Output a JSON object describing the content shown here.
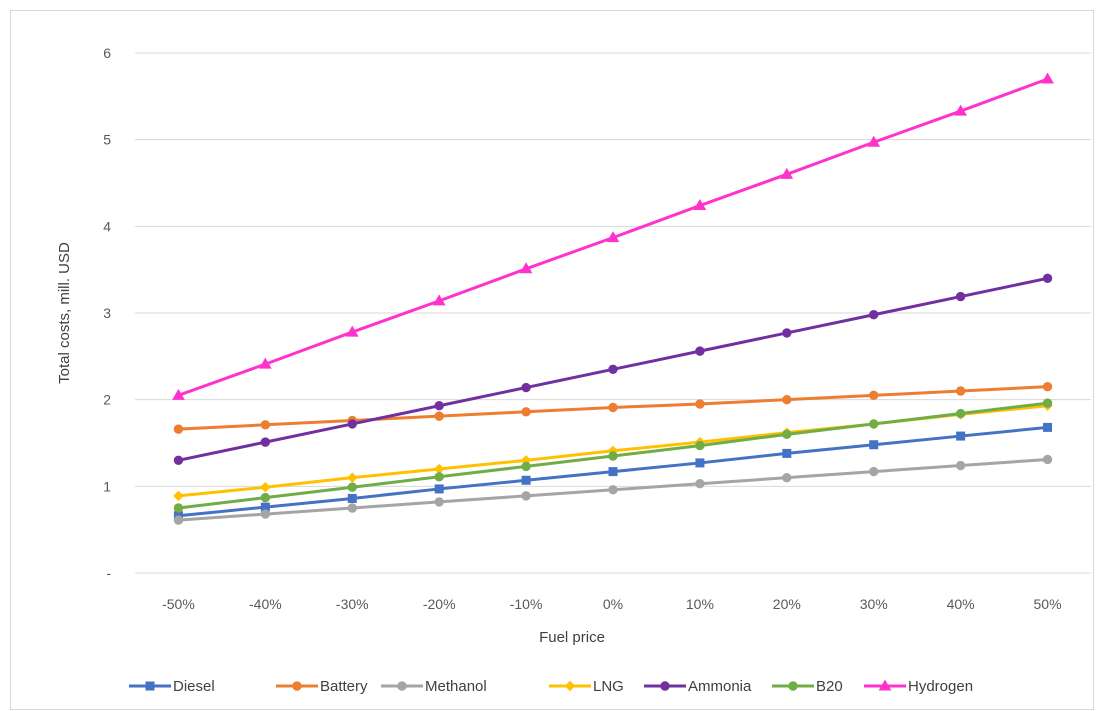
{
  "chart_data": {
    "type": "line",
    "title": "",
    "xlabel": "Fuel price",
    "ylabel": "Total costs, mill. USD",
    "categories": [
      "-50%",
      "-40%",
      "-30%",
      "-20%",
      "-10%",
      "0%",
      "10%",
      "20%",
      "30%",
      "40%",
      "50%"
    ],
    "ylim": [
      0,
      6
    ],
    "yticks": [
      {
        "value": 0,
        "label": "-"
      },
      {
        "value": 1,
        "label": "1"
      },
      {
        "value": 2,
        "label": "2"
      },
      {
        "value": 3,
        "label": "3"
      },
      {
        "value": 4,
        "label": "4"
      },
      {
        "value": 5,
        "label": "5"
      },
      {
        "value": 6,
        "label": "6"
      }
    ],
    "grid": "horizontal",
    "legend_position": "bottom",
    "series": [
      {
        "name": "Diesel",
        "color": "#4472C4",
        "marker": "square",
        "values": [
          0.66,
          0.76,
          0.86,
          0.97,
          1.07,
          1.17,
          1.27,
          1.38,
          1.48,
          1.58,
          1.68
        ]
      },
      {
        "name": "Battery",
        "color": "#ED7D31",
        "marker": "circle",
        "values": [
          1.66,
          1.71,
          1.76,
          1.81,
          1.86,
          1.91,
          1.95,
          2.0,
          2.05,
          2.1,
          2.15
        ]
      },
      {
        "name": "Methanol",
        "color": "#A5A5A5",
        "marker": "circle",
        "values": [
          0.61,
          0.68,
          0.75,
          0.82,
          0.89,
          0.96,
          1.03,
          1.1,
          1.17,
          1.24,
          1.31
        ]
      },
      {
        "name": "LNG",
        "color": "#FFC000",
        "marker": "diamond",
        "values": [
          0.89,
          0.99,
          1.1,
          1.2,
          1.3,
          1.41,
          1.51,
          1.62,
          1.72,
          1.83,
          1.93
        ]
      },
      {
        "name": "Ammonia",
        "color": "#7030A0",
        "marker": "circle",
        "values": [
          1.3,
          1.51,
          1.72,
          1.93,
          2.14,
          2.35,
          2.56,
          2.77,
          2.98,
          3.19,
          3.4
        ]
      },
      {
        "name": "B20",
        "color": "#70AD47",
        "marker": "circle",
        "values": [
          0.75,
          0.87,
          0.99,
          1.11,
          1.23,
          1.35,
          1.47,
          1.6,
          1.72,
          1.84,
          1.96
        ]
      },
      {
        "name": "Hydrogen",
        "color": "#FF33CC",
        "marker": "triangle",
        "values": [
          2.05,
          2.41,
          2.78,
          3.14,
          3.51,
          3.87,
          4.24,
          4.6,
          4.97,
          5.33,
          5.7
        ]
      }
    ]
  }
}
